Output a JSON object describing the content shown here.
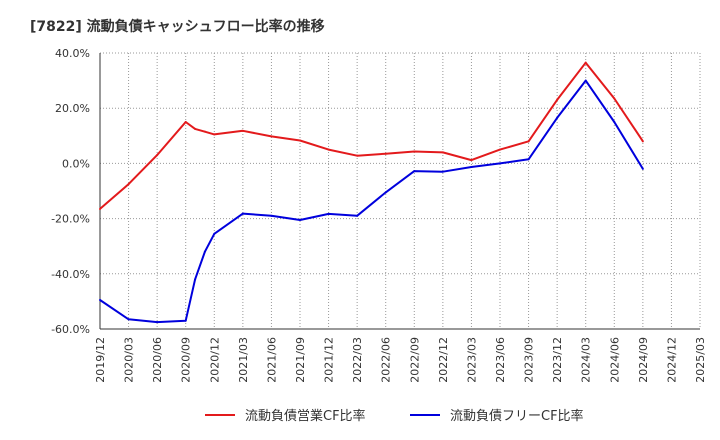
{
  "chart_data": {
    "type": "line",
    "title": "[7822]  流動負債キャッシュフロー比率の推移",
    "xlabel": "",
    "ylabel": "",
    "ylim": [
      -60,
      40
    ],
    "y_ticks": [
      40,
      20,
      0,
      -20,
      -40,
      -60
    ],
    "y_tick_labels": [
      "40.0%",
      "20.0%",
      "0.0%",
      "-20.0%",
      "-40.0%",
      "-60.0%"
    ],
    "x_tick_labels": [
      "2019/12",
      "2020/03",
      "2020/06",
      "2020/09",
      "2020/12",
      "2021/03",
      "2021/06",
      "2021/09",
      "2021/12",
      "2022/03",
      "2022/06",
      "2022/09",
      "2022/12",
      "2023/03",
      "2023/06",
      "2023/09",
      "2023/12",
      "2024/03",
      "2024/06",
      "2024/09",
      "2024/12",
      "2025/03"
    ],
    "grid": true,
    "legend_position": "bottom",
    "series": [
      {
        "name": "流動負債営業CF比率",
        "color": "#e31a1c",
        "x": [
          0,
          1,
          2,
          3,
          3.33,
          3.67,
          4,
          5,
          6,
          7,
          8,
          9,
          10,
          11,
          12,
          13,
          14,
          15,
          16,
          17,
          18,
          19
        ],
        "values": [
          -16.5,
          -7.5,
          3.0,
          15.0,
          12.5,
          11.5,
          10.5,
          11.8,
          9.8,
          8.3,
          5.0,
          2.8,
          3.5,
          4.3,
          4.0,
          1.2,
          5.0,
          8.0,
          23.0,
          36.5,
          23.5,
          8.0
        ]
      },
      {
        "name": "流動負債フリーCF比率",
        "color": "#0000dd",
        "x": [
          0,
          1,
          2,
          3,
          3.33,
          3.67,
          4,
          5,
          6,
          7,
          8,
          9,
          10,
          11,
          12,
          13,
          14,
          15,
          16,
          17,
          18,
          19
        ],
        "values": [
          -49.5,
          -56.5,
          -57.5,
          -57.0,
          -42.0,
          -32.0,
          -25.5,
          -18.2,
          -19.0,
          -20.5,
          -18.3,
          -19.0,
          -10.5,
          -2.8,
          -3.0,
          -1.3,
          0.0,
          1.5,
          16.5,
          30.0,
          15.0,
          -2.0
        ]
      }
    ]
  }
}
